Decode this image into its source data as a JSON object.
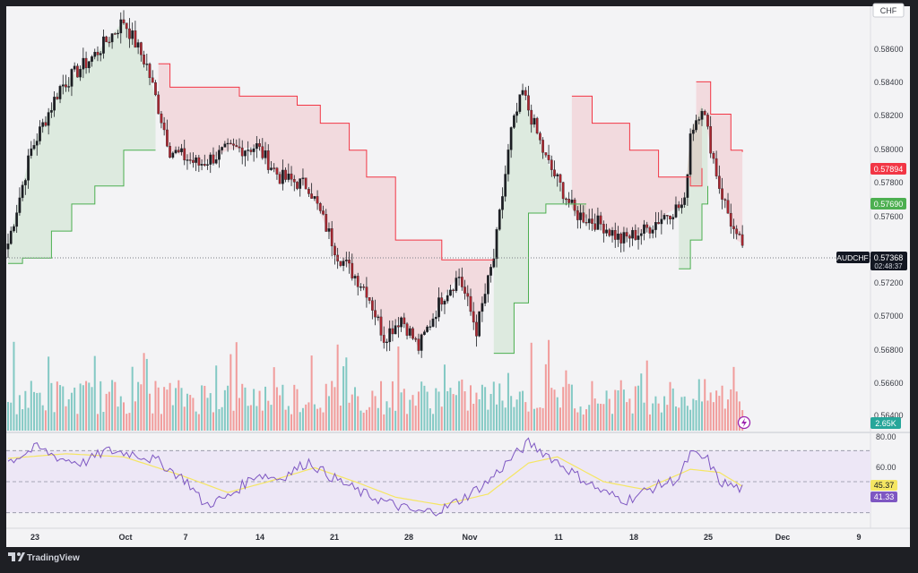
{
  "currency_label": "CHF",
  "brand": "TradingView",
  "price_axis": {
    "ticks": [
      "0.58600",
      "0.58400",
      "0.58200",
      "0.58000",
      "0.57800",
      "0.57600",
      "0.57200",
      "0.57000",
      "0.56800",
      "0.56600",
      "0.56400"
    ],
    "ylim": [
      0.5634,
      0.587
    ]
  },
  "rsi_axis": {
    "ticks": [
      "80.00",
      "60.00"
    ],
    "ylim": [
      20,
      80
    ]
  },
  "time_axis": {
    "ticks": [
      "23",
      "Oct",
      "7",
      "14",
      "21",
      "28",
      "Nov",
      "11",
      "18",
      "25",
      "Dec",
      "9"
    ]
  },
  "badges": {
    "supertrend_red": "0.57894",
    "supertrend_green": "0.57690",
    "symbol": "AUDCHF",
    "price": "0.57368",
    "countdown": "02:48:37",
    "volume": "2.65K",
    "rsi_ma": "45.37",
    "rsi": "41.33"
  },
  "colors": {
    "up": "#26a69a",
    "down": "#ef5350",
    "supertrend_up": "#4caf50",
    "supertrend_down": "#f23645",
    "rsi_line": "#7e57c2",
    "rsi_ma": "#f5e663",
    "rsi_band": "#ede7f6"
  },
  "chart_data": {
    "type": "candlestick",
    "symbol": "AUDCHF",
    "series": [
      {
        "name": "Price",
        "anchors_price": [
          [
            0,
            0.5738
          ],
          [
            8,
            0.579
          ],
          [
            18,
            0.5825
          ],
          [
            30,
            0.5843
          ],
          [
            40,
            0.5862
          ],
          [
            48,
            0.5837
          ],
          [
            56,
            0.579
          ],
          [
            66,
            0.5782
          ],
          [
            76,
            0.579
          ],
          [
            86,
            0.5792
          ],
          [
            94,
            0.5775
          ],
          [
            104,
            0.577
          ],
          [
            114,
            0.5732
          ],
          [
            124,
            0.5712
          ],
          [
            130,
            0.5686
          ],
          [
            136,
            0.5697
          ],
          [
            142,
            0.568
          ],
          [
            150,
            0.5708
          ],
          [
            156,
            0.572
          ],
          [
            162,
            0.569
          ],
          [
            168,
            0.573
          ],
          [
            174,
            0.58
          ],
          [
            178,
            0.5822
          ],
          [
            186,
            0.5785
          ],
          [
            196,
            0.5755
          ],
          [
            206,
            0.5748
          ],
          [
            212,
            0.574
          ],
          [
            220,
            0.5745
          ],
          [
            228,
            0.5755
          ],
          [
            234,
            0.576
          ],
          [
            236,
            0.58
          ],
          [
            240,
            0.5815
          ],
          [
            246,
            0.577
          ],
          [
            252,
            0.574
          ],
          [
            254,
            0.5738
          ]
        ]
      },
      {
        "name": "Supertrend",
        "segments": [
          {
            "trend": "up",
            "pts": [
              [
                0,
                0.5727
              ],
              [
                5,
                0.573
              ],
              [
                15,
                0.5745
              ],
              [
                22,
                0.576
              ],
              [
                30,
                0.577
              ],
              [
                40,
                0.579
              ],
              [
                51,
                0.579
              ]
            ]
          },
          {
            "trend": "down",
            "pts": [
              [
                52,
                0.5838
              ],
              [
                56,
                0.5825
              ],
              [
                80,
                0.582
              ],
              [
                100,
                0.5815
              ],
              [
                108,
                0.5805
              ],
              [
                118,
                0.579
              ],
              [
                124,
                0.5775
              ],
              [
                134,
                0.574
              ],
              [
                150,
                0.5729
              ],
              [
                168,
                0.5729
              ]
            ]
          },
          {
            "trend": "up",
            "pts": [
              [
                168,
                0.5677
              ],
              [
                175,
                0.5705
              ],
              [
                180,
                0.5755
              ],
              [
                186,
                0.576
              ],
              [
                200,
                0.576
              ]
            ]
          },
          {
            "trend": "down",
            "pts": [
              [
                195,
                0.582
              ],
              [
                202,
                0.5805
              ],
              [
                215,
                0.579
              ],
              [
                225,
                0.5775
              ],
              [
                236,
                0.577
              ],
              [
                240,
                0.578
              ]
            ]
          },
          {
            "trend": "up",
            "pts": [
              [
                232,
                0.5724
              ],
              [
                236,
                0.574
              ],
              [
                240,
                0.576
              ],
              [
                242,
                0.577
              ]
            ]
          },
          {
            "trend": "down",
            "pts": [
              [
                238,
                0.5828
              ],
              [
                243,
                0.581
              ],
              [
                250,
                0.579
              ],
              [
                254,
                0.5789
              ]
            ]
          }
        ]
      },
      {
        "name": "Volume",
        "unit": "K",
        "last": 2.65
      },
      {
        "name": "RSI",
        "ylim": [
          20,
          80
        ],
        "anchors": [
          [
            0,
            63
          ],
          [
            10,
            72
          ],
          [
            18,
            65
          ],
          [
            26,
            62
          ],
          [
            34,
            70
          ],
          [
            44,
            68
          ],
          [
            52,
            63
          ],
          [
            62,
            50
          ],
          [
            68,
            35
          ],
          [
            76,
            40
          ],
          [
            86,
            55
          ],
          [
            94,
            52
          ],
          [
            104,
            63
          ],
          [
            110,
            55
          ],
          [
            122,
            43
          ],
          [
            132,
            36
          ],
          [
            142,
            30
          ],
          [
            150,
            32
          ],
          [
            158,
            40
          ],
          [
            166,
            50
          ],
          [
            174,
            65
          ],
          [
            180,
            75
          ],
          [
            186,
            68
          ],
          [
            196,
            55
          ],
          [
            206,
            43
          ],
          [
            214,
            38
          ],
          [
            224,
            47
          ],
          [
            232,
            52
          ],
          [
            236,
            68
          ],
          [
            242,
            64
          ],
          [
            246,
            50
          ],
          [
            254,
            45
          ]
        ]
      },
      {
        "name": "RSI MA",
        "anchors": [
          [
            0,
            65
          ],
          [
            20,
            68
          ],
          [
            40,
            66
          ],
          [
            60,
            54
          ],
          [
            76,
            43
          ],
          [
            90,
            50
          ],
          [
            106,
            59
          ],
          [
            120,
            50
          ],
          [
            134,
            40
          ],
          [
            150,
            35
          ],
          [
            166,
            42
          ],
          [
            180,
            62
          ],
          [
            190,
            66
          ],
          [
            206,
            50
          ],
          [
            220,
            45
          ],
          [
            236,
            58
          ],
          [
            246,
            56
          ],
          [
            254,
            47
          ]
        ]
      }
    ]
  }
}
